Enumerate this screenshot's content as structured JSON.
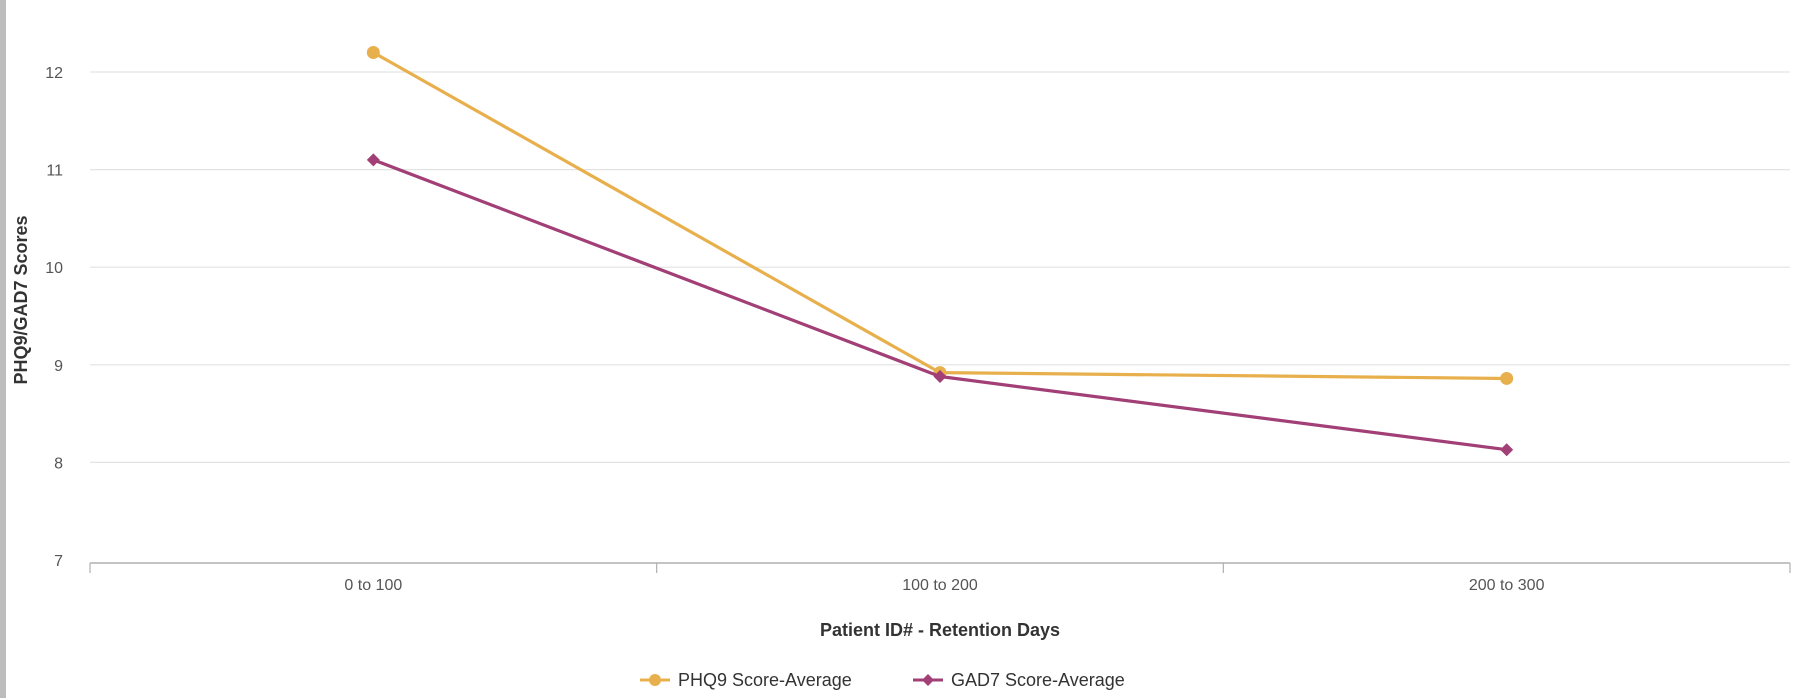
{
  "chart_data": {
    "type": "line",
    "title": "",
    "xlabel": "Patient ID# - Retention Days",
    "ylabel": "PHQ9/GAD7 Scores",
    "categories": [
      "0 to 100",
      "100 to 200",
      "200 to 300"
    ],
    "ylim": [
      7,
      12
    ],
    "yticks": [
      "7",
      "8",
      "9",
      "10",
      "11",
      "12"
    ],
    "grid": true,
    "legend_position": "bottom-center",
    "series": [
      {
        "name": "PHQ9 Score-Average",
        "values": [
          12.2,
          8.92,
          8.86
        ],
        "color": "#e8b04d",
        "marker": "circle"
      },
      {
        "name": "GAD7 Score-Average",
        "values": [
          11.1,
          8.88,
          8.13
        ],
        "color": "#a13f76",
        "marker": "diamond"
      }
    ]
  }
}
